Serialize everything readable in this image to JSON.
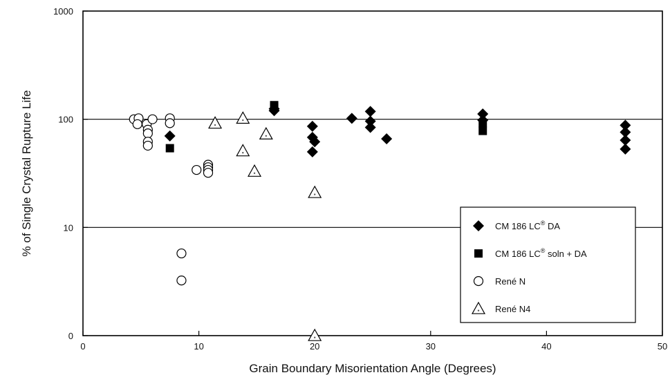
{
  "chart_data": {
    "type": "scatter",
    "title": "",
    "xlabel": "Grain Boundary Misorientation Angle (Degrees)",
    "ylabel": "% of Single Crystal Rupture Life",
    "x_scale": "linear",
    "y_scale": "log",
    "xlim": [
      0,
      50
    ],
    "ylim_display": [
      0,
      1000
    ],
    "x_ticks": [
      "0",
      "10",
      "20",
      "30",
      "40",
      "50"
    ],
    "y_ticks": [
      "0",
      "10",
      "100",
      "1000"
    ],
    "gridlines_y": [
      10,
      100
    ],
    "legend_position": "bottom-right",
    "legend": [
      {
        "series": "cm186_da",
        "label_main": "CM 186 LC",
        "label_sup": "®",
        "label_tail": " DA"
      },
      {
        "series": "cm186_soln_da",
        "label_main": "CM 186 LC",
        "label_sup": "®",
        "label_tail": " soln + DA"
      },
      {
        "series": "rene_n",
        "label_main": "René N",
        "label_sup": "",
        "label_tail": ""
      },
      {
        "series": "rene_n4",
        "label_main": "René N4",
        "label_sup": "",
        "label_tail": ""
      }
    ],
    "series": [
      {
        "id": "cm186_da",
        "marker": "diamond",
        "color": "#000000",
        "points": [
          [
            7.5,
            70
          ],
          [
            16.5,
            120
          ],
          [
            16.5,
            125
          ],
          [
            19.8,
            86
          ],
          [
            19.8,
            68
          ],
          [
            20,
            62
          ],
          [
            19.8,
            50
          ],
          [
            23.2,
            102
          ],
          [
            24.8,
            118
          ],
          [
            24.8,
            96
          ],
          [
            24.8,
            84
          ],
          [
            26.2,
            66
          ],
          [
            34.5,
            112
          ],
          [
            34.5,
            98
          ],
          [
            46.8,
            88
          ],
          [
            46.8,
            76
          ],
          [
            46.8,
            64
          ],
          [
            46.8,
            53
          ]
        ]
      },
      {
        "id": "cm186_soln_da",
        "marker": "square",
        "color": "#000000",
        "points": [
          [
            7.5,
            54
          ],
          [
            16.5,
            135
          ],
          [
            16.5,
            128
          ],
          [
            34.5,
            92
          ],
          [
            34.5,
            78
          ]
        ]
      },
      {
        "id": "rene_n",
        "marker": "circle",
        "color": "#000000",
        "points": [
          [
            4.4,
            100
          ],
          [
            4.8,
            102
          ],
          [
            4.7,
            90
          ],
          [
            5.5,
            90
          ],
          [
            5.6,
            80
          ],
          [
            5.6,
            74
          ],
          [
            5.6,
            62
          ],
          [
            5.6,
            57
          ],
          [
            6.0,
            100
          ],
          [
            7.5,
            102
          ],
          [
            7.5,
            92
          ],
          [
            9.8,
            34
          ],
          [
            10.8,
            38
          ],
          [
            10.8,
            36
          ],
          [
            10.8,
            34
          ],
          [
            10.8,
            32
          ],
          [
            8.5,
            7.6
          ],
          [
            8.5,
            5.1
          ]
        ]
      },
      {
        "id": "rene_n4",
        "marker": "triangle",
        "color": "#000000",
        "points": [
          [
            11.4,
            92
          ],
          [
            13.8,
            102
          ],
          [
            13.8,
            51
          ],
          [
            14.8,
            33
          ],
          [
            15.8,
            73
          ],
          [
            20,
            21
          ],
          [
            20,
            0
          ]
        ]
      }
    ]
  }
}
